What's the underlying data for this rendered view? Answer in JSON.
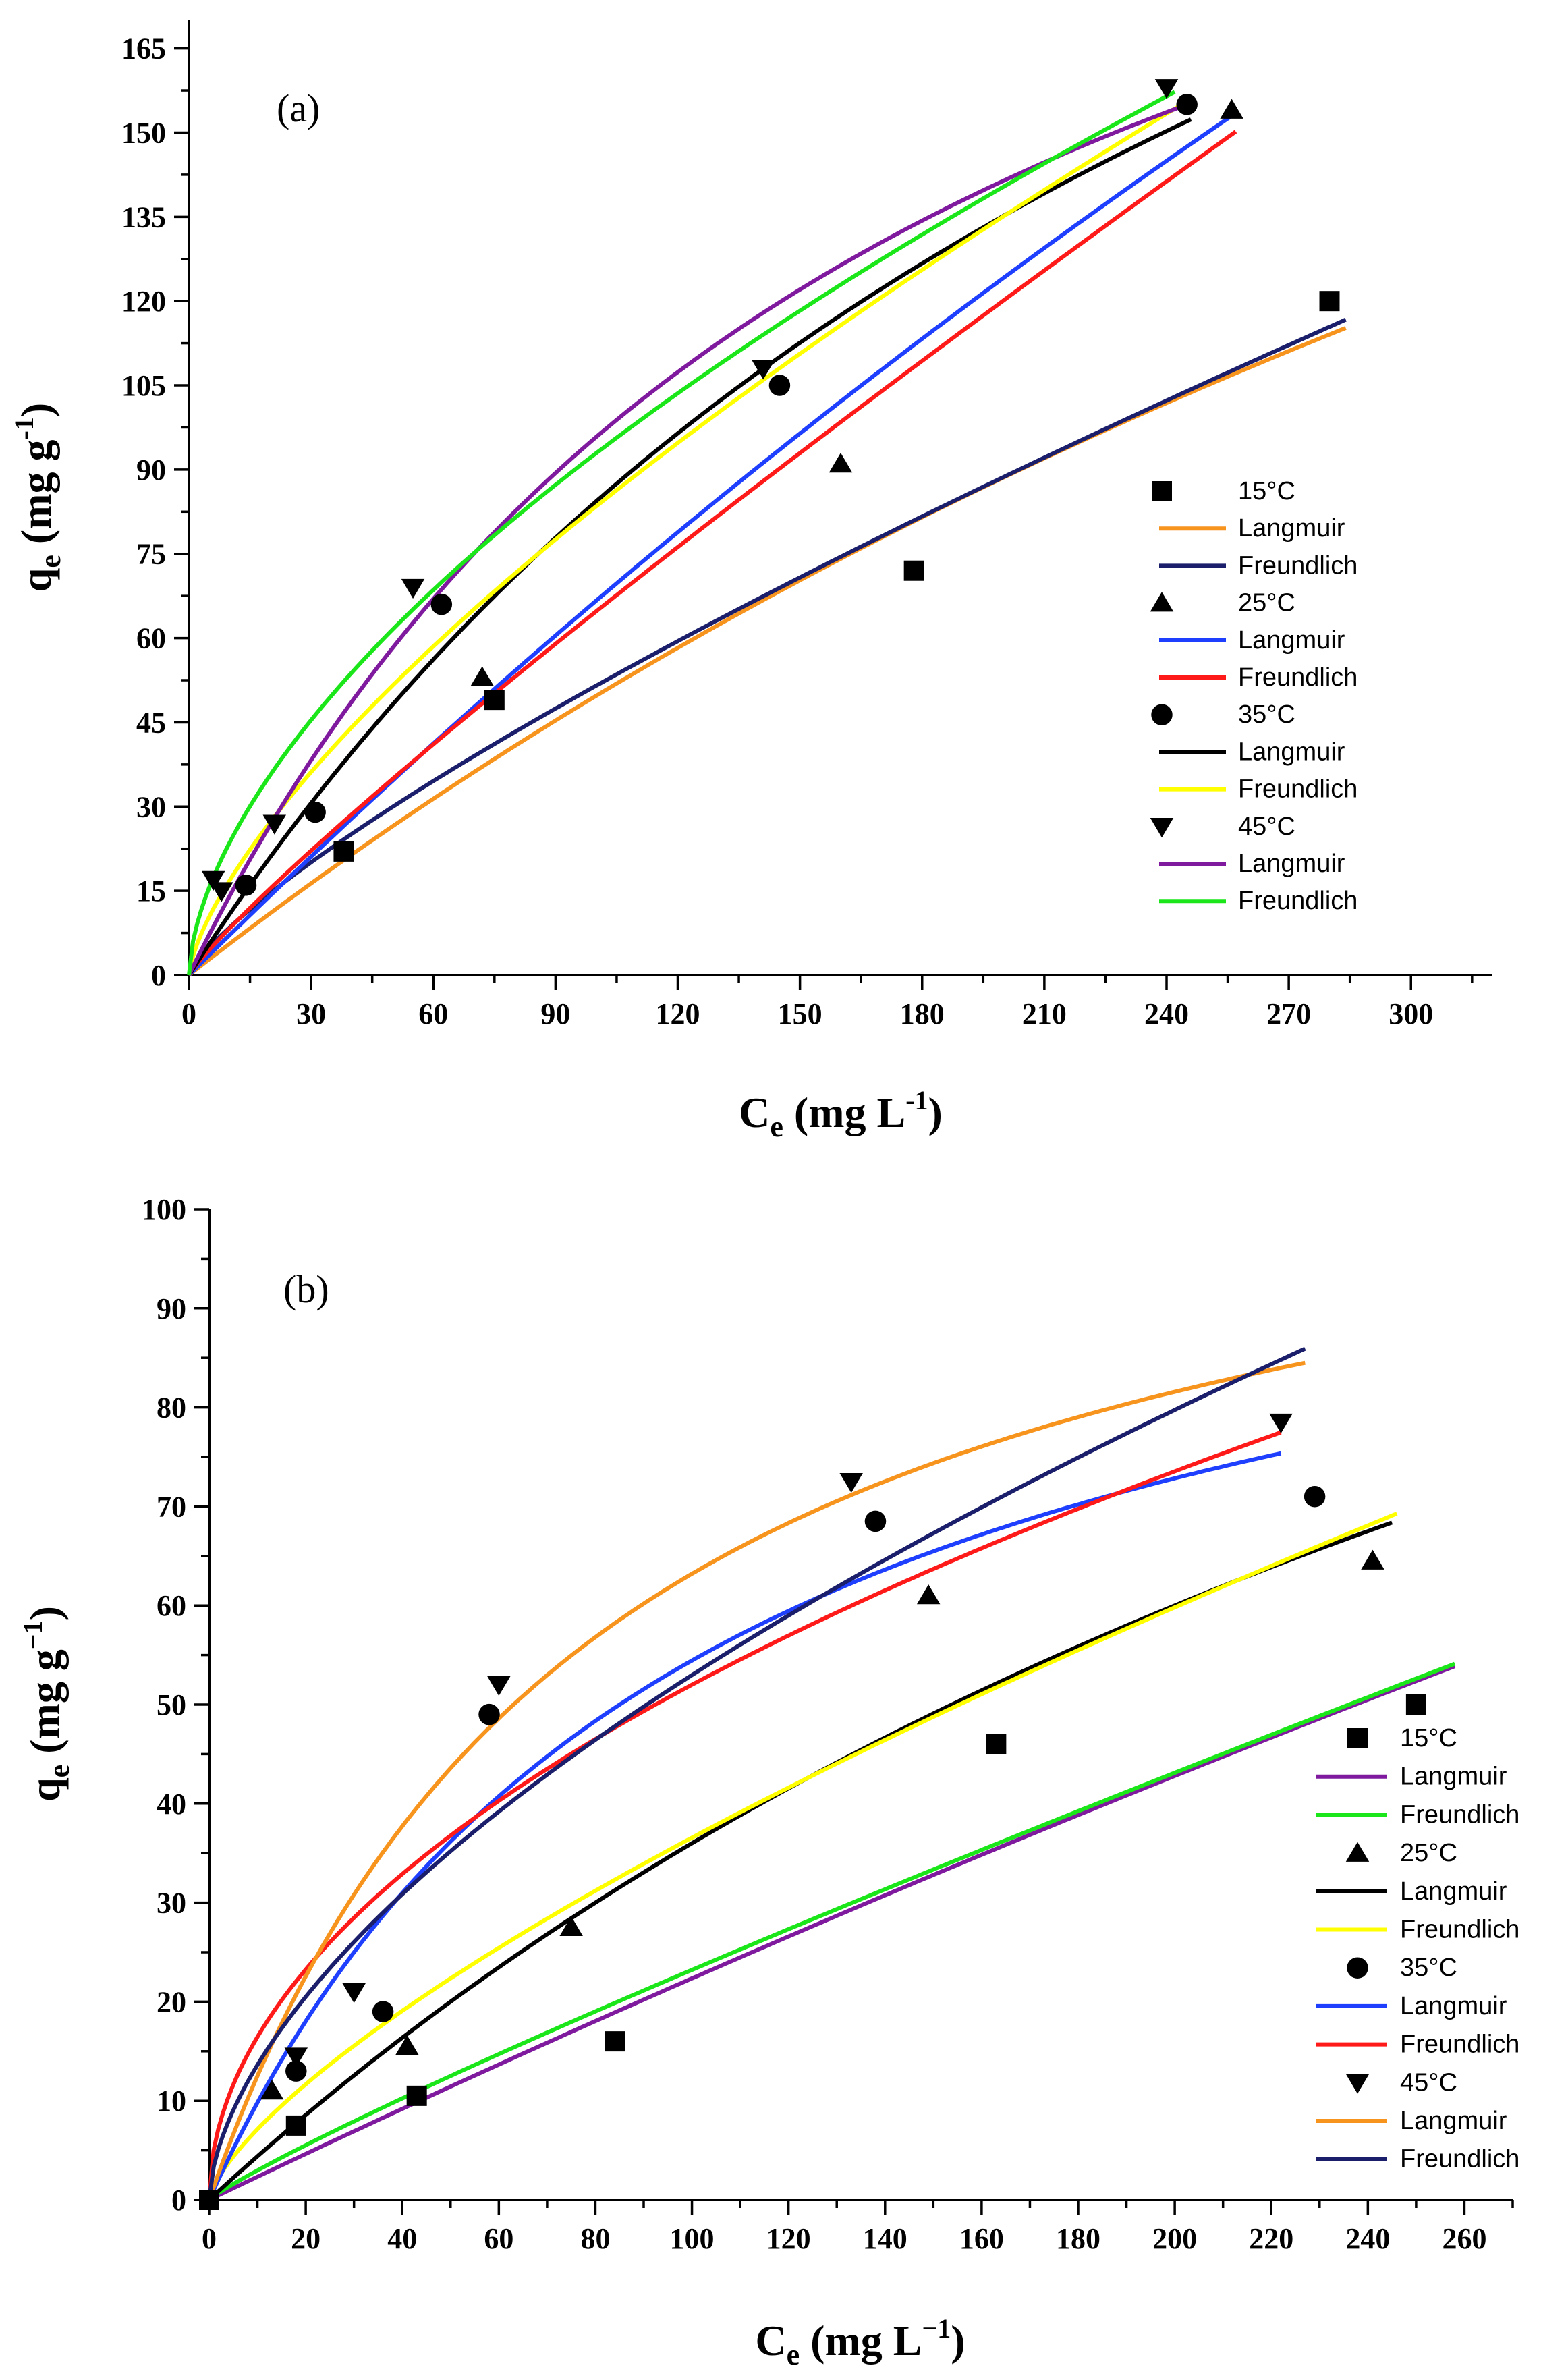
{
  "chart_data": [
    {
      "type": "scatter",
      "panel_label": "(a)",
      "xlabel": {
        "base": "C",
        "sub": "e",
        "unit_pre": " (mg L",
        "sup": "-1",
        "unit_post": ")"
      },
      "ylabel": {
        "base": "q",
        "sub": "e",
        "unit_pre": " (mg g",
        "sup": "-1",
        "unit_post": ")"
      },
      "xlim": [
        0,
        320
      ],
      "ylim": [
        0,
        170
      ],
      "x_ticks": [
        0,
        30,
        60,
        90,
        120,
        150,
        180,
        210,
        240,
        270,
        300
      ],
      "y_ticks": [
        0,
        15,
        30,
        45,
        60,
        75,
        90,
        105,
        120,
        135,
        150,
        165
      ],
      "grid": false,
      "legend_position": "right",
      "series": [
        {
          "name": "15°C",
          "marker": "square",
          "color": "#000000",
          "points": [
            [
              38,
              22
            ],
            [
              75,
              49
            ],
            [
              178,
              72
            ],
            [
              280,
              120
            ]
          ],
          "fits": [
            {
              "name": "Langmuir",
              "color": "#F7941D",
              "model": "langmuir",
              "qm": 405,
              "K": 0.0014,
              "x_max": 284
            },
            {
              "name": "Freundlich",
              "color": "#1B1F6B",
              "model": "freundlich",
              "Kf": 1.4,
              "n": 0.783,
              "x_max": 284
            }
          ]
        },
        {
          "name": "25°C",
          "marker": "triangle-up",
          "color": "#000000",
          "points": [
            [
              72,
              53
            ],
            [
              160,
              91
            ],
            [
              256,
              154
            ]
          ],
          "fits": [
            {
              "name": "Langmuir",
              "color": "#1F3FFF",
              "model": "langmuir",
              "qm": 900,
              "K": 0.0008,
              "x_max": 257
            },
            {
              "name": "Freundlich",
              "color": "#FF1A1A",
              "model": "freundlich",
              "Kf": 1.07,
              "n": 0.891,
              "x_max": 257
            }
          ]
        },
        {
          "name": "35°C",
          "marker": "circle",
          "color": "#000000",
          "points": [
            [
              14,
              16
            ],
            [
              31,
              29
            ],
            [
              62,
              66
            ],
            [
              145,
              105
            ],
            [
              245,
              155
            ]
          ],
          "fits": [
            {
              "name": "Langmuir",
              "color": "#000000",
              "model": "langmuir",
              "qm": 340,
              "K": 0.0033,
              "x_max": 246
            },
            {
              "name": "Freundlich",
              "color": "#FFFF00",
              "model": "freundlich",
              "Kf": 3.4,
              "n": 0.695,
              "x_max": 246
            }
          ]
        },
        {
          "name": "45°C",
          "marker": "triangle-down",
          "color": "#000000",
          "points": [
            [
              6,
              17
            ],
            [
              8,
              15
            ],
            [
              21,
              27
            ],
            [
              55,
              69
            ],
            [
              141,
              108
            ],
            [
              240,
              158
            ]
          ],
          "fits": [
            {
              "name": "Langmuir",
              "color": "#7F1A9F",
              "model": "langmuir",
              "qm": 270,
              "K": 0.0055,
              "x_max": 245
            },
            {
              "name": "Freundlich",
              "color": "#1AE61A",
              "model": "freundlich",
              "Kf": 6.0,
              "n": 0.595,
              "x_max": 242
            }
          ]
        }
      ]
    },
    {
      "type": "scatter",
      "panel_label": "(b)",
      "xlabel": {
        "base": "C",
        "sub": "e",
        "unit_pre": " (mg L",
        "sup": "−1",
        "unit_post": ")"
      },
      "ylabel": {
        "base": "q",
        "sub": "e",
        "unit_pre": " (mg g",
        "sup": "−1",
        "unit_post": ")"
      },
      "xlim": [
        0,
        270
      ],
      "ylim": [
        0,
        100
      ],
      "x_ticks": [
        0,
        20,
        40,
        60,
        80,
        100,
        120,
        140,
        160,
        180,
        200,
        220,
        240,
        260
      ],
      "y_ticks": [
        0,
        10,
        20,
        30,
        40,
        50,
        60,
        70,
        80,
        90,
        100
      ],
      "grid": false,
      "legend_position": "right",
      "series": [
        {
          "name": "15°C",
          "marker": "square",
          "color": "#000000",
          "points": [
            [
              0,
              0
            ],
            [
              18,
              7.5
            ],
            [
              43,
              10.5
            ],
            [
              84,
              16
            ],
            [
              163,
              46
            ],
            [
              250,
              50
            ]
          ],
          "fits": [
            {
              "name": "Langmuir",
              "color": "#7F1A9F",
              "model": "langmuir",
              "qm": 500,
              "K": 0.000468,
              "x_max": 258
            },
            {
              "name": "Freundlich",
              "color": "#1AE61A",
              "model": "freundlich",
              "Kf": 0.38,
              "n": 0.893,
              "x_max": 258
            }
          ]
        },
        {
          "name": "25°C",
          "marker": "triangle-up",
          "color": "#000000",
          "points": [
            [
              13,
              11
            ],
            [
              41,
              15.5
            ],
            [
              75,
              27.5
            ],
            [
              149,
              61
            ],
            [
              241,
              64.5
            ]
          ],
          "fits": [
            {
              "name": "Langmuir",
              "color": "#000000",
              "model": "langmuir",
              "qm": 180,
              "K": 0.0025,
              "x_max": 245
            },
            {
              "name": "Freundlich",
              "color": "#FFFF00",
              "model": "freundlich",
              "Kf": 1.39,
              "n": 0.71,
              "x_max": 246
            }
          ]
        },
        {
          "name": "35°C",
          "marker": "circle",
          "color": "#000000",
          "points": [
            [
              18,
              13
            ],
            [
              36,
              19
            ],
            [
              58,
              49
            ],
            [
              138,
              68.5
            ],
            [
              229,
              71
            ]
          ],
          "fits": [
            {
              "name": "Langmuir",
              "color": "#1F3FFF",
              "model": "langmuir",
              "qm": 110,
              "K": 0.0098,
              "x_max": 222
            },
            {
              "name": "Freundlich",
              "color": "#FF1A1A",
              "model": "freundlich",
              "Kf": 5.2,
              "n": 0.5,
              "x_max": 222
            }
          ]
        },
        {
          "name": "45°C",
          "marker": "triangle-down",
          "color": "#000000",
          "points": [
            [
              18,
              14.5
            ],
            [
              30,
              21
            ],
            [
              60,
              52
            ],
            [
              133,
              72.5
            ],
            [
              222,
              78.5
            ]
          ],
          "fits": [
            {
              "name": "Langmuir",
              "color": "#F7941D",
              "model": "langmuir",
              "qm": 115,
              "K": 0.0122,
              "x_max": 227
            },
            {
              "name": "Freundlich",
              "color": "#1B1F6B",
              "model": "freundlich",
              "Kf": 3.5,
              "n": 0.59,
              "x_max": 227
            }
          ]
        }
      ]
    }
  ]
}
